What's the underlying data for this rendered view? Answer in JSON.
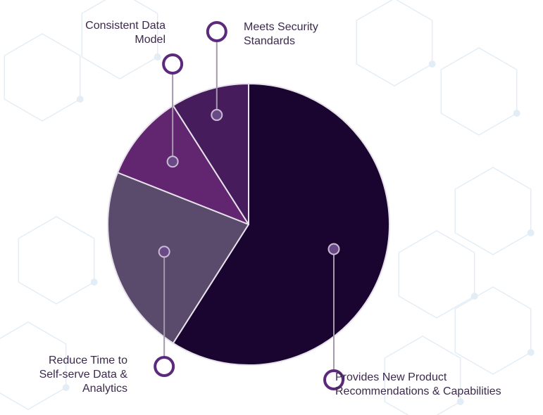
{
  "chart_data": {
    "type": "pie",
    "title": "",
    "categories": [
      "Provides New Product\nRecommendations & Capabilities",
      "Reduce Time to\nSelf-serve Data &\nAnalytics",
      "Consistent Data\nModel",
      "Meets Security\nStandards"
    ],
    "values": [
      59,
      22,
      10,
      9
    ],
    "colors": [
      "#1a0530",
      "#5a4a6c",
      "#622670",
      "#461c5c"
    ],
    "start_angle_deg": 0,
    "direction": "clockwise",
    "legend": "callouts",
    "data_labels": false
  },
  "style": {
    "separator_color": "#e6e1ea",
    "callout_line_color": "#a49aab",
    "callout_ring_color": "#5c2a7c",
    "callout_dot_fill": "#6a4a86",
    "callout_dot_stroke": "#c9bcd4",
    "label_color": "#3c2a4d",
    "pattern_color": "#e3edf5"
  }
}
